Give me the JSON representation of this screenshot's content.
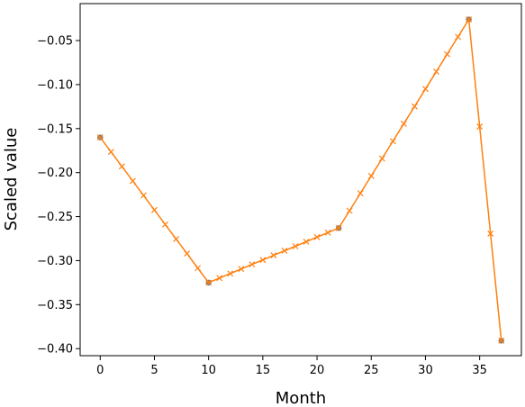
{
  "chart_data": {
    "type": "line",
    "xlabel": "Month",
    "ylabel": "Scaled value",
    "xlim": [
      -1.85,
      38.85
    ],
    "ylim": [
      -0.408,
      -0.008
    ],
    "x_ticks": [
      0,
      5,
      10,
      15,
      20,
      25,
      30,
      35
    ],
    "x_tick_labels": [
      "0",
      "5",
      "10",
      "15",
      "20",
      "25",
      "30",
      "35"
    ],
    "y_ticks": [
      -0.05,
      -0.1,
      -0.15,
      -0.2,
      -0.25,
      -0.3,
      -0.35,
      -0.4
    ],
    "y_tick_labels": [
      "−0.05",
      "−0.10",
      "−0.15",
      "−0.20",
      "−0.25",
      "−0.30",
      "−0.35",
      "−0.40"
    ],
    "grid": false,
    "colors": {
      "line": "#ff7f0e",
      "anchor_points": "#7f7f7f"
    },
    "series": [
      {
        "marker": "point",
        "x": [
          0,
          10,
          22,
          34,
          37
        ],
        "y": [
          -0.16,
          -0.325,
          -0.263,
          -0.026,
          -0.391
        ]
      },
      {
        "marker": "x",
        "x": [
          0,
          1,
          2,
          3,
          4,
          5,
          6,
          7,
          8,
          9,
          10,
          11,
          12,
          13,
          14,
          15,
          16,
          17,
          18,
          19,
          20,
          21,
          22,
          23,
          24,
          25,
          26,
          27,
          28,
          29,
          30,
          31,
          32,
          33,
          34,
          35,
          36,
          37
        ],
        "y": [
          -0.16,
          -0.1765,
          -0.193,
          -0.2095,
          -0.226,
          -0.2425,
          -0.259,
          -0.2755,
          -0.292,
          -0.3085,
          -0.325,
          -0.3198,
          -0.3147,
          -0.3095,
          -0.3043,
          -0.2992,
          -0.294,
          -0.2888,
          -0.2837,
          -0.2785,
          -0.2733,
          -0.2682,
          -0.263,
          -0.2433,
          -0.2235,
          -0.2038,
          -0.184,
          -0.1643,
          -0.1445,
          -0.1248,
          -0.105,
          -0.0853,
          -0.0655,
          -0.0458,
          -0.026,
          -0.1477,
          -0.2693,
          -0.391
        ]
      }
    ]
  }
}
